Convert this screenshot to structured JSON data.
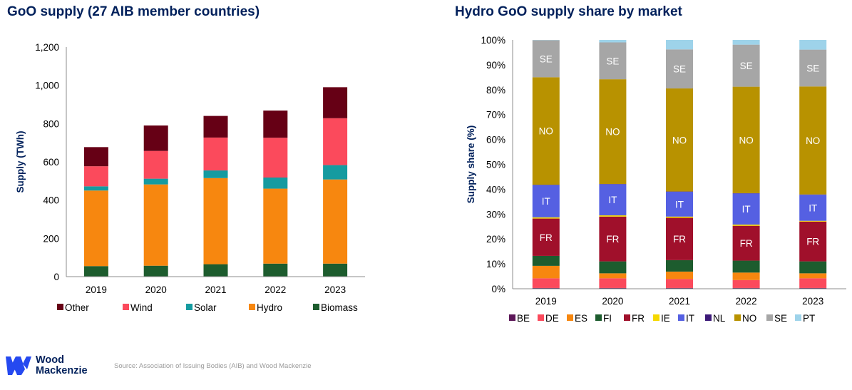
{
  "chart_data": [
    {
      "type": "bar",
      "stacked": true,
      "title": "GoO supply (27 AIB member countries)",
      "xlabel": "",
      "ylabel": "Supply (TWh)",
      "ylim": [
        0,
        1200
      ],
      "yticks": [
        0,
        200,
        400,
        600,
        800,
        1000,
        1200
      ],
      "ytick_labels": [
        "0",
        "200",
        "400",
        "600",
        "800",
        "1,000",
        "1,200"
      ],
      "categories": [
        "2019",
        "2020",
        "2021",
        "2022",
        "2023"
      ],
      "legend_position": "bottom",
      "series": [
        {
          "name": "Biomass",
          "color": "#1d5c2e",
          "values": [
            55,
            57,
            65,
            68,
            68
          ]
        },
        {
          "name": "Hydro",
          "color": "#f7870f",
          "values": [
            395,
            425,
            450,
            392,
            440
          ]
        },
        {
          "name": "Solar",
          "color": "#159ba0",
          "values": [
            22,
            30,
            40,
            58,
            75
          ]
        },
        {
          "name": "Wind",
          "color": "#fb4a5c",
          "values": [
            105,
            145,
            172,
            208,
            245
          ]
        },
        {
          "name": "Other",
          "color": "#660015",
          "values": [
            100,
            133,
            113,
            142,
            162
          ]
        }
      ],
      "legend_order": [
        "Other",
        "Wind",
        "Solar",
        "Hydro",
        "Biomass"
      ]
    },
    {
      "type": "bar",
      "stacked": true,
      "title": "Hydro GoO supply share by market",
      "xlabel": "",
      "ylabel": "Supply share (%)",
      "ylim": [
        0,
        100
      ],
      "yticks": [
        0,
        10,
        20,
        30,
        40,
        50,
        60,
        70,
        80,
        90,
        100
      ],
      "ytick_labels": [
        "0%",
        "10%",
        "20%",
        "30%",
        "40%",
        "50%",
        "60%",
        "70%",
        "80%",
        "90%",
        "100%"
      ],
      "categories": [
        "2019",
        "2020",
        "2021",
        "2022",
        "2023"
      ],
      "legend_position": "bottom",
      "labelled_series": [
        "FR",
        "IT",
        "NO",
        "SE"
      ],
      "series": [
        {
          "name": "BE",
          "color": "#5c1758",
          "values": [
            0.3,
            0.3,
            0.3,
            0.3,
            0.3
          ]
        },
        {
          "name": "DE",
          "color": "#fb4a5c",
          "values": [
            3.9,
            3.9,
            3.6,
            3.2,
            3.9
          ]
        },
        {
          "name": "ES",
          "color": "#f7870f",
          "values": [
            5,
            2,
            3,
            3,
            2
          ]
        },
        {
          "name": "FI",
          "color": "#1d5c2e",
          "values": [
            4,
            4.8,
            4.6,
            4.8,
            4.8
          ]
        },
        {
          "name": "FR",
          "color": "#a0102b",
          "values": [
            15,
            18,
            17,
            14,
            16
          ]
        },
        {
          "name": "IE",
          "color": "#f5d800",
          "values": [
            0.5,
            0.5,
            0.5,
            0.5,
            0.3
          ]
        },
        {
          "name": "IT",
          "color": "#5560e2",
          "values": [
            13,
            12.5,
            10,
            12.5,
            10.5
          ]
        },
        {
          "name": "NL",
          "color": "#3d1a78",
          "values": [
            0.1,
            0.1,
            0.1,
            0.1,
            0.1
          ]
        },
        {
          "name": "NO",
          "color": "#b89200",
          "values": [
            43.2,
            42.1,
            41.4,
            42.8,
            43.4
          ]
        },
        {
          "name": "SE",
          "color": "#a6a6a6",
          "values": [
            14.9,
            14.8,
            15.7,
            16.9,
            14.8
          ]
        },
        {
          "name": "PT",
          "color": "#9ed3ea",
          "values": [
            0.1,
            1,
            3.8,
            1.9,
            3.9
          ]
        }
      ],
      "legend_order": [
        "BE",
        "DE",
        "ES",
        "FI",
        "FR",
        "IE",
        "IT",
        "NL",
        "NO",
        "SE",
        "PT"
      ]
    }
  ],
  "footer": {
    "brand_line1": "Wood",
    "brand_line2": "Mackenzie",
    "source": "Source: Association of Issuing Bodies (AIB) and Wood Mackenzie"
  }
}
